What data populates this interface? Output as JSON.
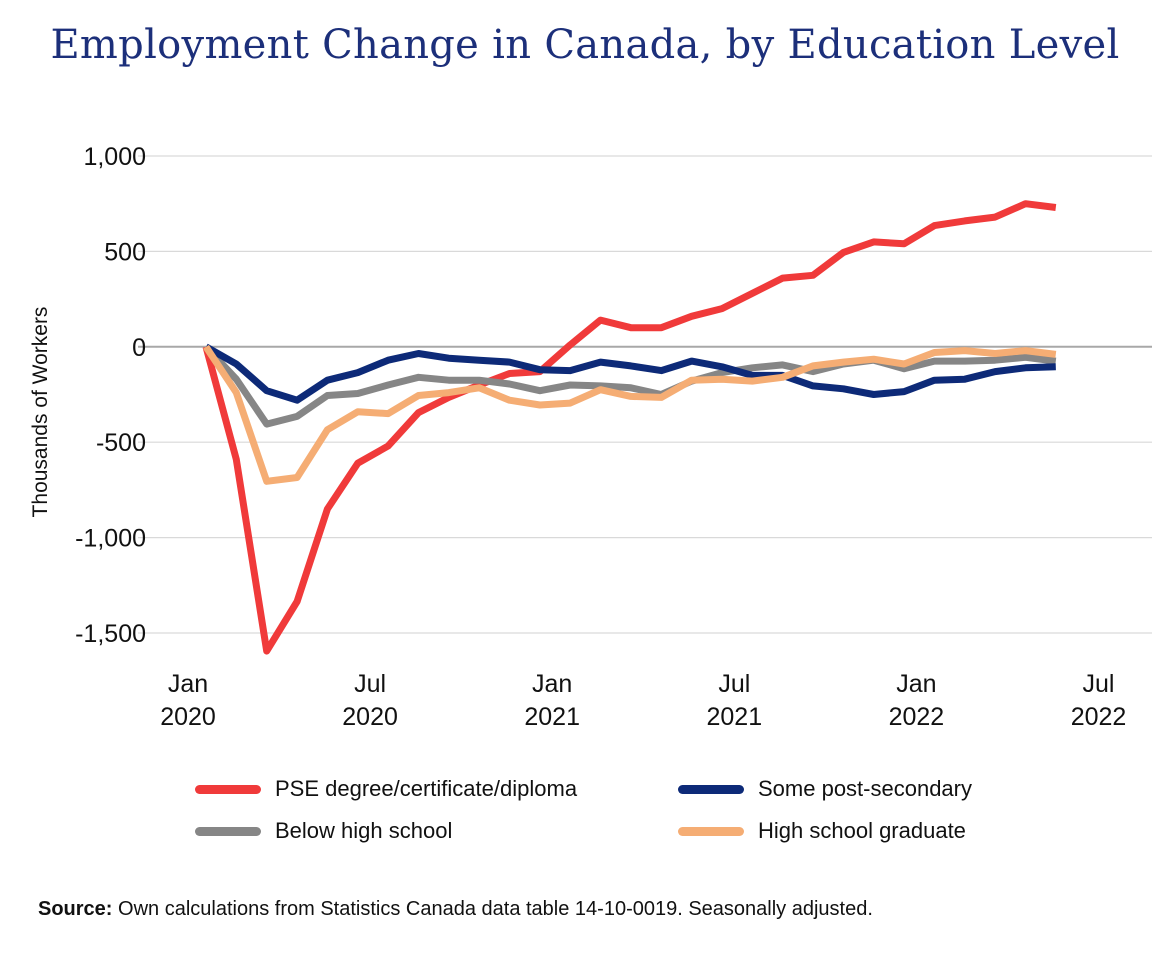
{
  "chart_data": {
    "type": "line",
    "title": "Employment Change in Canada, by Education Level",
    "ylabel": "Thousands of Workers",
    "ylim": [
      -1500,
      1000
    ],
    "yticks": [
      1000,
      500,
      0,
      -500,
      -1000,
      -1500
    ],
    "ytick_labels": [
      "1,000",
      "500",
      "0",
      "-500",
      "-1,000",
      "-1,500"
    ],
    "xticks": [
      {
        "month": "2020-01",
        "line1": "Jan",
        "line2": "2020"
      },
      {
        "month": "2020-07",
        "line1": "Jul",
        "line2": "2020"
      },
      {
        "month": "2021-01",
        "line1": "Jan",
        "line2": "2021"
      },
      {
        "month": "2021-07",
        "line1": "Jul",
        "line2": "2021"
      },
      {
        "month": "2022-01",
        "line1": "Jan",
        "line2": "2022"
      },
      {
        "month": "2022-07",
        "line1": "Jul",
        "line2": "2022"
      }
    ],
    "x": [
      "2020-01",
      "2020-02",
      "2020-03",
      "2020-04",
      "2020-05",
      "2020-06",
      "2020-07",
      "2020-08",
      "2020-09",
      "2020-10",
      "2020-11",
      "2020-12",
      "2021-01",
      "2021-02",
      "2021-03",
      "2021-04",
      "2021-05",
      "2021-06",
      "2021-07",
      "2021-08",
      "2021-09",
      "2021-10",
      "2021-11",
      "2021-12",
      "2022-01",
      "2022-02",
      "2022-03",
      "2022-04",
      "2022-05",
      "2022-06"
    ],
    "series": [
      {
        "name": "PSE degree/certificate/diploma",
        "color": "#f03a3a",
        "values": [
          0,
          -590,
          -1595,
          -1335,
          -850,
          -610,
          -520,
          -345,
          -265,
          -200,
          -140,
          -130,
          10,
          140,
          100,
          100,
          160,
          200,
          280,
          360,
          375,
          495,
          550,
          540,
          635,
          660,
          680,
          750,
          730,
          null
        ]
      },
      {
        "name": "Some post-secondary",
        "color": "#0d2a78",
        "values": [
          0,
          -90,
          -230,
          -280,
          -175,
          -135,
          -70,
          -35,
          -60,
          -70,
          -80,
          -120,
          -125,
          -80,
          -100,
          -125,
          -75,
          -105,
          -150,
          -150,
          -205,
          -220,
          -250,
          -235,
          -175,
          -170,
          -130,
          -110,
          -105,
          null
        ]
      },
      {
        "name": "Below high school",
        "color": "#868686",
        "values": [
          0,
          -170,
          -405,
          -365,
          -255,
          -245,
          -200,
          -160,
          -175,
          -175,
          -195,
          -230,
          -200,
          -205,
          -215,
          -250,
          -180,
          -135,
          -110,
          -95,
          -130,
          -90,
          -70,
          -115,
          -75,
          -75,
          -70,
          -55,
          -75,
          null
        ]
      },
      {
        "name": "High school graduate",
        "color": "#f5ad74",
        "values": [
          0,
          -240,
          -705,
          -685,
          -435,
          -340,
          -350,
          -255,
          -240,
          -215,
          -280,
          -305,
          -295,
          -225,
          -260,
          -265,
          -175,
          -170,
          -180,
          -160,
          -100,
          -80,
          -65,
          -90,
          -30,
          -20,
          -35,
          -20,
          -40,
          null
        ]
      }
    ],
    "grid": true,
    "legend_placement": "bottom"
  },
  "source": {
    "label": "Source:",
    "text": " Own calculations from Statistics Canada data table 14-10-0019. Seasonally adjusted."
  }
}
